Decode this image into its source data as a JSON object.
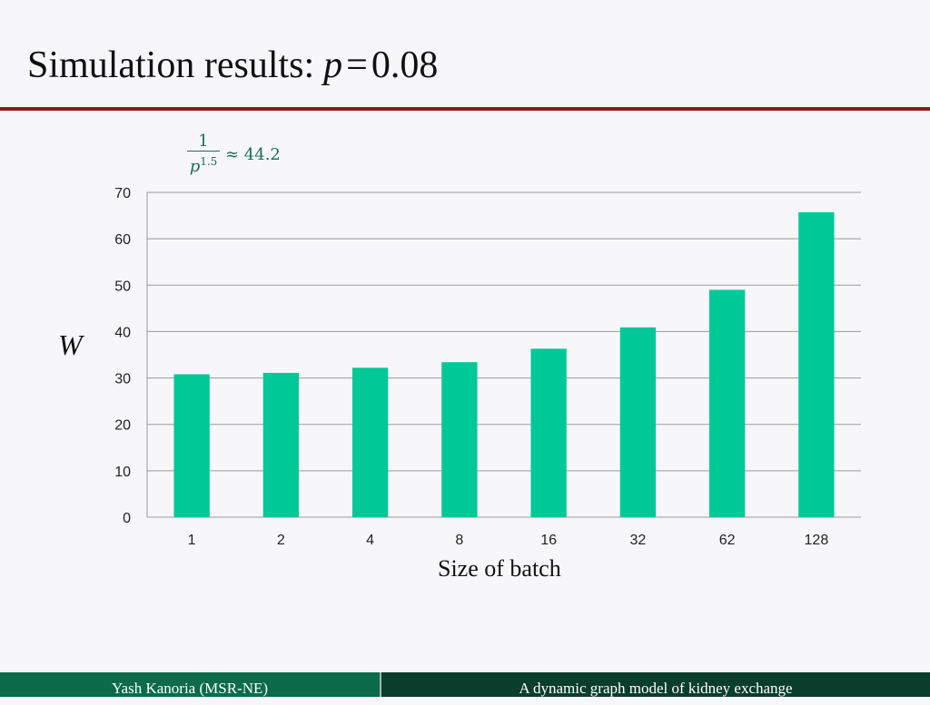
{
  "slide": {
    "title_text": "Simulation results:",
    "title_var": "p",
    "title_eq": "=",
    "title_value": "0.08",
    "formula": {
      "numerator": "1",
      "denominator_var": "p",
      "denominator_exp": "1.5",
      "relation": "≈ 44.2"
    },
    "footer_left": "Yash Kanoria (MSR-NE)",
    "footer_right": "A dynamic graph model of kidney exchange",
    "colors": {
      "bar": "#00c896",
      "title_rule": "#8b1a1a",
      "formula": "#1b6e54",
      "footer_left": "#0b6b4a",
      "footer_right": "#0a3d2c"
    }
  },
  "chart_data": {
    "type": "bar",
    "categories": [
      "1",
      "2",
      "4",
      "8",
      "16",
      "32",
      "62",
      "128"
    ],
    "values": [
      30.8,
      31.1,
      32.2,
      33.4,
      36.3,
      40.9,
      49.0,
      65.7
    ],
    "xlabel": "Size of batch",
    "ylabel": "W",
    "ylim": [
      0,
      70
    ],
    "yticks": [
      0,
      10,
      20,
      30,
      40,
      50,
      60,
      70
    ],
    "grid": true,
    "legend": "none"
  }
}
